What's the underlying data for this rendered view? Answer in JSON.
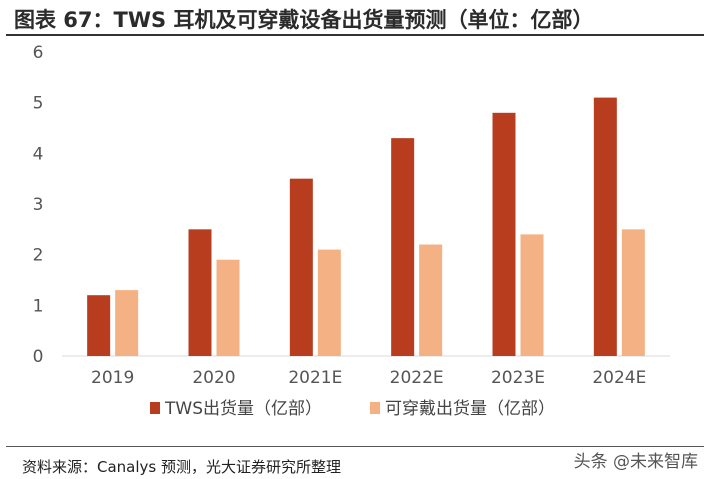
{
  "title": "图表 67：TWS 耳机及可穿戴设备出货量预测（单位：亿部）",
  "source": "资料来源：Canalys 预测，光大证券研究所整理",
  "watermark": "头条 @未来智库",
  "chart_data": {
    "type": "bar",
    "title": "图表 67：TWS 耳机及可穿戴设备出货量预测（单位：亿部）",
    "xlabel": "",
    "ylabel": "",
    "categories": [
      "2019",
      "2020",
      "2021E",
      "2022E",
      "2023E",
      "2024E"
    ],
    "ylim": [
      0,
      6
    ],
    "yticks": [
      "0",
      "1",
      "2",
      "3",
      "4",
      "5",
      "6"
    ],
    "grid": false,
    "legend": "bottom",
    "series": [
      {
        "name": "TWS出货量（亿部）",
        "color": "#b83d1f",
        "values": [
          1.2,
          2.5,
          3.5,
          4.3,
          4.8,
          5.1
        ]
      },
      {
        "name": "可穿戴出货量（亿部）",
        "color": "#f4b183",
        "values": [
          1.3,
          1.9,
          2.1,
          2.2,
          2.4,
          2.5
        ]
      }
    ]
  }
}
